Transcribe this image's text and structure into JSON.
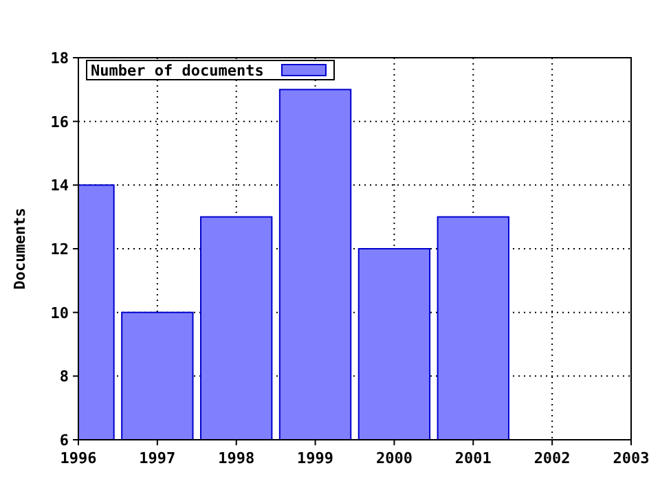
{
  "chart_data": {
    "type": "bar",
    "ylabel": "Documents",
    "x": [
      1996,
      1997,
      1998,
      1999,
      2000,
      2001
    ],
    "series": [
      {
        "name": "Number of documents",
        "color": "#8080ff",
        "values": [
          14,
          10,
          13,
          17,
          12,
          13
        ]
      }
    ],
    "xlim": [
      1996,
      2003
    ],
    "xticks": [
      1996,
      1997,
      1998,
      1999,
      2000,
      2001,
      2002,
      2003
    ],
    "ylim": [
      6,
      18
    ],
    "yticks": [
      6,
      8,
      10,
      12,
      14,
      16,
      18
    ],
    "grid": true,
    "legend": "top left"
  }
}
